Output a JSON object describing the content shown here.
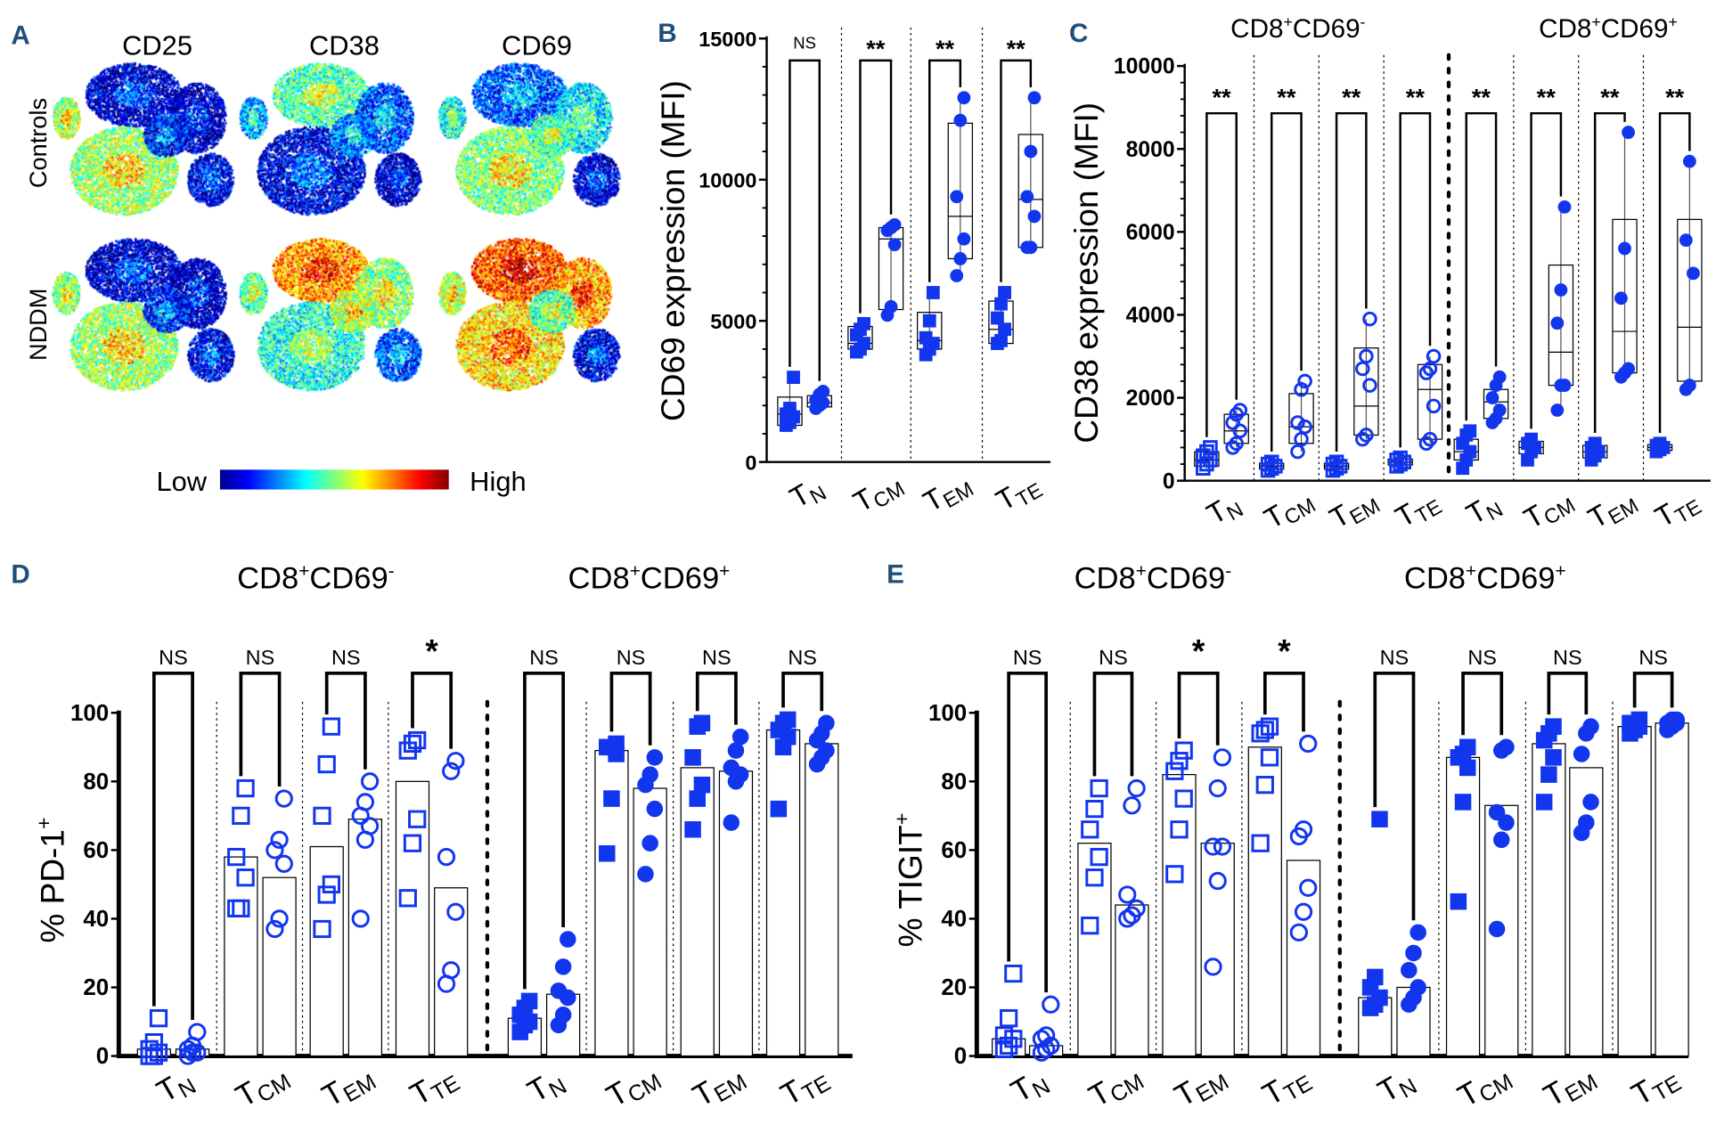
{
  "colors": {
    "marker": "#1236ee",
    "panel_label": "#1f4e79",
    "axis": "#000000"
  },
  "panel_a": {
    "label": "A",
    "columns": [
      "CD25",
      "CD38",
      "CD69"
    ],
    "rows": [
      "Controls",
      "NDDM"
    ],
    "colorbar": {
      "low": "Low",
      "high": "High",
      "colormap": "jet"
    }
  },
  "headers": {
    "cd69neg": {
      "a": "CD8",
      "a_sup": "+",
      "b": "CD69",
      "b_sup": "-"
    },
    "cd69pos": {
      "a": "CD8",
      "a_sup": "+",
      "b": "CD69",
      "b_sup": "+"
    }
  },
  "chart_data": [
    {
      "panel": "B",
      "type": "box",
      "ylabel": "CD69 expression (MFI)",
      "ylim": [
        0,
        15000
      ],
      "yticks": [
        0,
        5000,
        10000,
        15000
      ],
      "categories": [
        {
          "main": "T",
          "sub": "N"
        },
        {
          "main": "T",
          "sub": "CM"
        },
        {
          "main": "T",
          "sub": "EM"
        },
        {
          "main": "T",
          "sub": "TE"
        }
      ],
      "groups": [
        {
          "sig": "NS",
          "controls": {
            "values": [
              1300,
              1400,
              1600,
              1700,
              1900,
              3000
            ],
            "q1": 1300,
            "median": 1700,
            "q3": 2300,
            "marker": "filled-square"
          },
          "nddm": {
            "values": [
              1900,
              2000,
              2100,
              2200,
              2400,
              2500
            ],
            "q1": 1950,
            "median": 2100,
            "q3": 2350,
            "marker": "filled-circle"
          }
        },
        {
          "sig": "**",
          "controls": {
            "values": [
              3900,
              4000,
              4200,
              4500,
              4700,
              4900
            ],
            "q1": 4000,
            "median": 4200,
            "q3": 4800,
            "marker": "filled-square"
          },
          "nddm": {
            "values": [
              5200,
              5500,
              7700,
              8200,
              8300,
              8400
            ],
            "q1": 5400,
            "median": 7900,
            "q3": 8300,
            "marker": "filled-circle"
          }
        },
        {
          "sig": "**",
          "controls": {
            "values": [
              3800,
              4000,
              4200,
              4400,
              5000,
              6000
            ],
            "q1": 4000,
            "median": 4300,
            "q3": 5300,
            "marker": "filled-square"
          },
          "nddm": {
            "values": [
              6600,
              7200,
              7900,
              9400,
              12100,
              12900
            ],
            "q1": 7200,
            "median": 8700,
            "q3": 12000,
            "marker": "filled-circle"
          }
        },
        {
          "sig": "**",
          "controls": {
            "values": [
              4200,
              4300,
              4700,
              5100,
              5600,
              6000
            ],
            "q1": 4200,
            "median": 4700,
            "q3": 5700,
            "marker": "filled-square"
          },
          "nddm": {
            "values": [
              7600,
              7600,
              8700,
              9400,
              11000,
              12900
            ],
            "q1": 7600,
            "median": 9300,
            "q3": 11600,
            "marker": "filled-circle"
          }
        }
      ]
    },
    {
      "panel": "C",
      "type": "box",
      "ylabel": "CD38 expression (MFI)",
      "ylim": [
        0,
        10000
      ],
      "yticks": [
        0,
        2000,
        4000,
        6000,
        8000,
        10000
      ],
      "categories": [
        {
          "main": "T",
          "sub": "N"
        },
        {
          "main": "T",
          "sub": "CM"
        },
        {
          "main": "T",
          "sub": "EM"
        },
        {
          "main": "T",
          "sub": "TE"
        },
        {
          "main": "T",
          "sub": "N"
        },
        {
          "main": "T",
          "sub": "CM"
        },
        {
          "main": "T",
          "sub": "EM"
        },
        {
          "main": "T",
          "sub": "TE"
        }
      ],
      "groups": [
        {
          "sig": "**",
          "controls": {
            "values": [
              300,
              400,
              500,
              600,
              700,
              800
            ],
            "q1": 350,
            "median": 500,
            "q3": 700,
            "marker": "open-square"
          },
          "nddm": {
            "values": [
              800,
              900,
              1200,
              1400,
              1600,
              1700
            ],
            "q1": 900,
            "median": 1200,
            "q3": 1600,
            "marker": "open-circle"
          }
        },
        {
          "sig": "**",
          "controls": {
            "values": [
              250,
              300,
              350,
              400,
              450
            ],
            "q1": 280,
            "median": 350,
            "q3": 420,
            "marker": "open-square"
          },
          "nddm": {
            "values": [
              700,
              1000,
              1300,
              1400,
              2200,
              2400
            ],
            "q1": 900,
            "median": 1300,
            "q3": 2100,
            "marker": "open-circle"
          }
        },
        {
          "sig": "**",
          "controls": {
            "values": [
              250,
              300,
              350,
              400,
              450
            ],
            "q1": 280,
            "median": 350,
            "q3": 420,
            "marker": "open-square"
          },
          "nddm": {
            "values": [
              1000,
              1100,
              2300,
              2700,
              3000,
              3900
            ],
            "q1": 1100,
            "median": 1800,
            "q3": 3200,
            "marker": "open-circle"
          }
        },
        {
          "sig": "**",
          "controls": {
            "values": [
              350,
              400,
              450,
              500,
              550
            ],
            "q1": 380,
            "median": 450,
            "q3": 520,
            "marker": "open-square"
          },
          "nddm": {
            "values": [
              900,
              1000,
              1800,
              2600,
              2700,
              3000
            ],
            "q1": 1000,
            "median": 2200,
            "q3": 2800,
            "marker": "open-circle"
          }
        },
        {
          "sig": "**",
          "controls": {
            "values": [
              300,
              500,
              700,
              900,
              1100,
              1200
            ],
            "q1": 500,
            "median": 700,
            "q3": 1000,
            "marker": "filled-square"
          },
          "nddm": {
            "values": [
              1400,
              1500,
              1700,
              2000,
              2300,
              2500
            ],
            "q1": 1500,
            "median": 1900,
            "q3": 2200,
            "marker": "filled-circle"
          }
        },
        {
          "sig": "**",
          "controls": {
            "values": [
              500,
              700,
              800,
              900,
              1000
            ],
            "q1": 650,
            "median": 800,
            "q3": 950,
            "marker": "filled-square"
          },
          "nddm": {
            "values": [
              1700,
              2300,
              2300,
              3800,
              4600,
              6600
            ],
            "q1": 2300,
            "median": 3100,
            "q3": 5200,
            "marker": "filled-circle"
          }
        },
        {
          "sig": "**",
          "controls": {
            "values": [
              500,
              600,
              700,
              800,
              900
            ],
            "q1": 550,
            "median": 700,
            "q3": 850,
            "marker": "filled-square"
          },
          "nddm": {
            "values": [
              2500,
              2600,
              2700,
              4400,
              5600,
              8400
            ],
            "q1": 2600,
            "median": 3600,
            "q3": 6300,
            "marker": "filled-circle"
          }
        },
        {
          "sig": "**",
          "controls": {
            "values": [
              700,
              750,
              800,
              850,
              900
            ],
            "q1": 730,
            "median": 800,
            "q3": 870,
            "marker": "filled-square"
          },
          "nddm": {
            "values": [
              2200,
              2300,
              5000,
              5800,
              7700
            ],
            "q1": 2400,
            "median": 3700,
            "q3": 6300,
            "marker": "filled-circle"
          }
        }
      ]
    },
    {
      "panel": "D",
      "type": "bar",
      "ylabel": "% PD-1",
      "ylabel_sup": "+",
      "ylim": [
        0,
        100
      ],
      "yticks": [
        0,
        20,
        40,
        60,
        80,
        100
      ],
      "categories": [
        {
          "main": "T",
          "sub": "N"
        },
        {
          "main": "T",
          "sub": "CM"
        },
        {
          "main": "T",
          "sub": "EM"
        },
        {
          "main": "T",
          "sub": "TE"
        },
        {
          "main": "T",
          "sub": "N"
        },
        {
          "main": "T",
          "sub": "CM"
        },
        {
          "main": "T",
          "sub": "EM"
        },
        {
          "main": "T",
          "sub": "TE"
        }
      ],
      "groups": [
        {
          "sig": "NS",
          "controls": {
            "bar": 2,
            "values": [
              0,
              0,
              1,
              2,
              4,
              11
            ],
            "marker": "open-square"
          },
          "nddm": {
            "bar": 2,
            "values": [
              0,
              1,
              1,
              2,
              3,
              7
            ],
            "marker": "open-circle"
          }
        },
        {
          "sig": "NS",
          "controls": {
            "bar": 58,
            "values": [
              43,
              43,
              52,
              58,
              70,
              78
            ],
            "marker": "open-square"
          },
          "nddm": {
            "bar": 52,
            "values": [
              37,
              40,
              56,
              60,
              63,
              75
            ],
            "marker": "open-circle"
          }
        },
        {
          "sig": "NS",
          "controls": {
            "bar": 61,
            "values": [
              37,
              47,
              50,
              70,
              85,
              96
            ],
            "marker": "open-square"
          },
          "nddm": {
            "bar": 69,
            "values": [
              40,
              63,
              67,
              70,
              74,
              80
            ],
            "marker": "open-circle"
          }
        },
        {
          "sig": "*",
          "controls": {
            "bar": 80,
            "values": [
              46,
              62,
              69,
              89,
              91,
              92
            ],
            "marker": "open-square"
          },
          "nddm": {
            "bar": 49,
            "values": [
              21,
              25,
              42,
              58,
              83,
              86
            ],
            "marker": "open-circle"
          }
        },
        {
          "sig": "NS",
          "controls": {
            "bar": 11,
            "values": [
              7,
              9,
              10,
              12,
              14,
              16
            ],
            "marker": "filled-square"
          },
          "nddm": {
            "bar": 18,
            "values": [
              9,
              12,
              17,
              19,
              26,
              34
            ],
            "marker": "filled-circle"
          }
        },
        {
          "sig": "NS",
          "controls": {
            "bar": 89,
            "values": [
              59,
              75,
              88,
              90,
              90,
              91
            ],
            "marker": "filled-square"
          },
          "nddm": {
            "bar": 78,
            "values": [
              53,
              62,
              72,
              79,
              82,
              87
            ],
            "marker": "filled-circle"
          }
        },
        {
          "sig": "NS",
          "controls": {
            "bar": 84,
            "values": [
              66,
              75,
              79,
              87,
              96,
              97
            ],
            "marker": "filled-square"
          },
          "nddm": {
            "bar": 83,
            "values": [
              68,
              80,
              82,
              84,
              89,
              93
            ],
            "marker": "filled-circle"
          }
        },
        {
          "sig": "NS",
          "controls": {
            "bar": 95,
            "values": [
              72,
              90,
              93,
              95,
              97,
              98
            ],
            "marker": "filled-square"
          },
          "nddm": {
            "bar": 91,
            "values": [
              85,
              87,
              89,
              92,
              94,
              97
            ],
            "marker": "filled-circle"
          }
        }
      ]
    },
    {
      "panel": "E",
      "type": "bar",
      "ylabel": "% TIGIT",
      "ylabel_sup": "+",
      "ylim": [
        0,
        100
      ],
      "yticks": [
        0,
        20,
        40,
        60,
        80,
        100
      ],
      "categories": [
        {
          "main": "T",
          "sub": "N"
        },
        {
          "main": "T",
          "sub": "CM"
        },
        {
          "main": "T",
          "sub": "EM"
        },
        {
          "main": "T",
          "sub": "TE"
        },
        {
          "main": "T",
          "sub": "N"
        },
        {
          "main": "T",
          "sub": "CM"
        },
        {
          "main": "T",
          "sub": "EM"
        },
        {
          "main": "T",
          "sub": "TE"
        }
      ],
      "groups": [
        {
          "sig": "NS",
          "controls": {
            "bar": 5,
            "values": [
              2,
              3,
              5,
              6,
              11,
              24
            ],
            "marker": "open-square"
          },
          "nddm": {
            "bar": 3,
            "values": [
              1,
              2,
              3,
              5,
              6,
              15
            ],
            "marker": "open-circle"
          }
        },
        {
          "sig": "NS",
          "controls": {
            "bar": 62,
            "values": [
              38,
              52,
              58,
              66,
              72,
              78
            ],
            "marker": "open-square"
          },
          "nddm": {
            "bar": 44,
            "values": [
              40,
              41,
              43,
              47,
              73,
              78
            ],
            "marker": "open-circle"
          }
        },
        {
          "sig": "*",
          "controls": {
            "bar": 82,
            "values": [
              53,
              66,
              75,
              83,
              86,
              89
            ],
            "marker": "open-square"
          },
          "nddm": {
            "bar": 62,
            "values": [
              26,
              51,
              61,
              61,
              78,
              87
            ],
            "marker": "open-circle"
          }
        },
        {
          "sig": "*",
          "controls": {
            "bar": 90,
            "values": [
              62,
              79,
              87,
              94,
              95,
              96
            ],
            "marker": "open-square"
          },
          "nddm": {
            "bar": 57,
            "values": [
              36,
              42,
              49,
              64,
              66,
              91
            ],
            "marker": "open-circle"
          }
        },
        {
          "sig": "NS",
          "controls": {
            "bar": 17,
            "values": [
              14,
              15,
              17,
              20,
              23,
              69
            ],
            "marker": "filled-square"
          },
          "nddm": {
            "bar": 20,
            "values": [
              15,
              17,
              20,
              25,
              30,
              36
            ],
            "marker": "filled-circle"
          }
        },
        {
          "sig": "NS",
          "controls": {
            "bar": 87,
            "values": [
              45,
              74,
              84,
              87,
              88,
              90
            ],
            "marker": "filled-square"
          },
          "nddm": {
            "bar": 73,
            "values": [
              37,
              63,
              68,
              71,
              89,
              90
            ],
            "marker": "filled-circle"
          }
        },
        {
          "sig": "NS",
          "controls": {
            "bar": 91,
            "values": [
              74,
              82,
              87,
              92,
              94,
              96
            ],
            "marker": "filled-square"
          },
          "nddm": {
            "bar": 84,
            "values": [
              65,
              68,
              74,
              88,
              94,
              96
            ],
            "marker": "filled-circle"
          }
        },
        {
          "sig": "NS",
          "controls": {
            "bar": 96,
            "values": [
              94,
              95,
              96,
              97,
              97,
              98
            ],
            "marker": "filled-square"
          },
          "nddm": {
            "bar": 97,
            "values": [
              95,
              96,
              97,
              97,
              98,
              98
            ],
            "marker": "filled-circle"
          }
        }
      ]
    }
  ]
}
